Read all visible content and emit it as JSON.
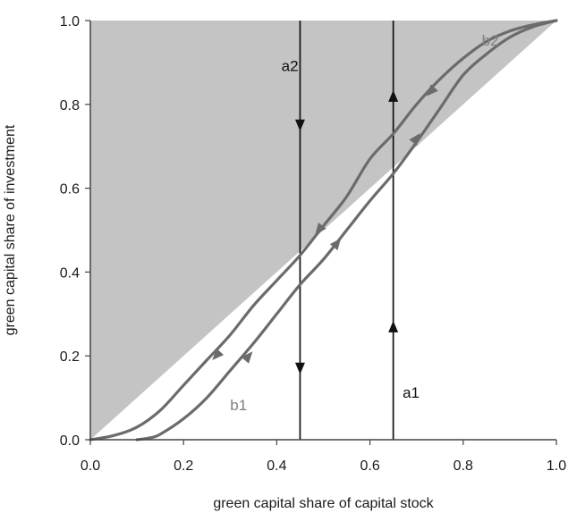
{
  "chart_data": {
    "type": "line",
    "xlabel": "green capital share of capital stock",
    "ylabel": "green capital share of investment",
    "xlim": [
      0.0,
      1.0
    ],
    "ylim": [
      0.0,
      1.0
    ],
    "x_ticks": [
      "0.0",
      "0.2",
      "0.4",
      "0.6",
      "0.8",
      "1.0"
    ],
    "y_ticks": [
      "0.0",
      "0.2",
      "0.4",
      "0.6",
      "0.8",
      "1.0"
    ],
    "grid": false,
    "shaded_region": {
      "description": "region above the diagonal y = x",
      "vertices": [
        [
          0,
          0
        ],
        [
          0,
          1
        ],
        [
          1,
          1
        ]
      ],
      "color": "#c4c4c4"
    },
    "series": [
      {
        "name": "b1",
        "color": "#6b6b6b",
        "points": [
          [
            0.1,
            0.0
          ],
          [
            0.13,
            0.005
          ],
          [
            0.15,
            0.013
          ],
          [
            0.2,
            0.05
          ],
          [
            0.25,
            0.1
          ],
          [
            0.3,
            0.165
          ],
          [
            0.35,
            0.23
          ],
          [
            0.4,
            0.3
          ],
          [
            0.45,
            0.37
          ],
          [
            0.5,
            0.43
          ],
          [
            0.55,
            0.5
          ],
          [
            0.6,
            0.57
          ],
          [
            0.65,
            0.635
          ],
          [
            0.7,
            0.71
          ],
          [
            0.75,
            0.79
          ],
          [
            0.8,
            0.87
          ],
          [
            0.85,
            0.92
          ],
          [
            0.9,
            0.96
          ],
          [
            0.95,
            0.985
          ],
          [
            1.0,
            1.0
          ]
        ],
        "arrows": [
          {
            "x": 0.34,
            "y": 0.2,
            "direction": "forward"
          },
          {
            "x": 0.53,
            "y": 0.47,
            "direction": "forward"
          },
          {
            "x": 0.7,
            "y": 0.72,
            "direction": "forward"
          }
        ]
      },
      {
        "name": "b2",
        "color": "#6b6b6b",
        "points": [
          [
            0.0,
            0.0
          ],
          [
            0.05,
            0.01
          ],
          [
            0.1,
            0.03
          ],
          [
            0.15,
            0.07
          ],
          [
            0.2,
            0.13
          ],
          [
            0.25,
            0.19
          ],
          [
            0.3,
            0.25
          ],
          [
            0.35,
            0.32
          ],
          [
            0.4,
            0.38
          ],
          [
            0.45,
            0.44
          ],
          [
            0.5,
            0.51
          ],
          [
            0.55,
            0.58
          ],
          [
            0.6,
            0.67
          ],
          [
            0.65,
            0.73
          ],
          [
            0.7,
            0.8
          ],
          [
            0.75,
            0.86
          ],
          [
            0.8,
            0.91
          ],
          [
            0.85,
            0.95
          ],
          [
            0.9,
            0.975
          ],
          [
            0.95,
            0.99
          ],
          [
            1.0,
            1.0
          ]
        ],
        "arrows": [
          {
            "x": 0.27,
            "y": 0.2,
            "direction": "backward"
          },
          {
            "x": 0.49,
            "y": 0.5,
            "direction": "backward"
          },
          {
            "x": 0.73,
            "y": 0.83,
            "direction": "backward"
          }
        ]
      }
    ],
    "vertical_lines": [
      {
        "name": "a1",
        "x": 0.65,
        "y_from": 0.0,
        "y_to": 1.0,
        "direction": "up",
        "arrow_y": [
          0.27,
          0.82
        ],
        "color": "#111111"
      },
      {
        "name": "a2",
        "x": 0.45,
        "y_from": 1.0,
        "y_to": 0.0,
        "direction": "down",
        "arrow_y": [
          0.75,
          0.17
        ],
        "color": "#111111"
      }
    ],
    "annotations": [
      {
        "text": "a1",
        "x": 0.67,
        "y": 0.1,
        "color": "#111111"
      },
      {
        "text": "a2",
        "x": 0.41,
        "y": 0.88,
        "color": "#111111"
      },
      {
        "text": "b1",
        "x": 0.3,
        "y": 0.07,
        "color": "#808080"
      },
      {
        "text": "b2",
        "x": 0.84,
        "y": 0.94,
        "color": "#808080"
      }
    ]
  }
}
